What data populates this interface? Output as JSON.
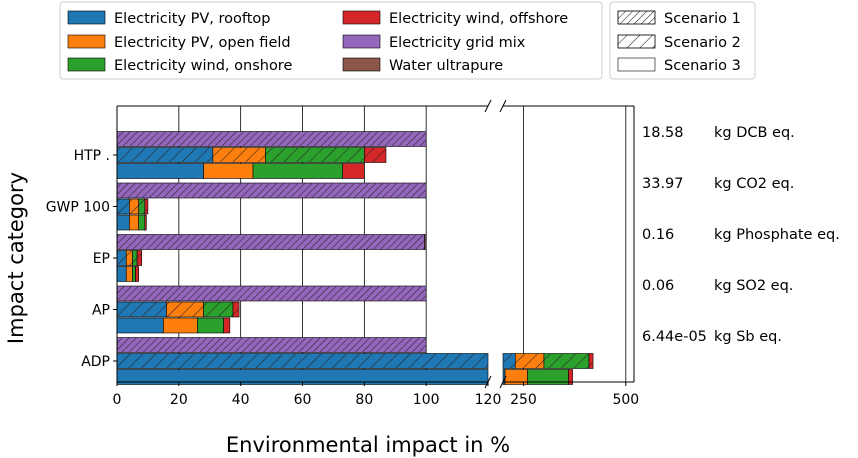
{
  "chart_data": {
    "type": "bar",
    "orientation": "horizontal",
    "stacked": true,
    "xlabel": "Environmental impact in %",
    "ylabel": "Impact category",
    "xlim_left": [
      0,
      120
    ],
    "xlim_right": [
      200,
      520
    ],
    "axis_break": true,
    "xticks_left": [
      "0",
      "20",
      "40",
      "60",
      "80",
      "100",
      "120"
    ],
    "xticks_right": [
      "250",
      "500"
    ],
    "grid": "vertical",
    "legend_placement": "top",
    "categories": [
      "HTP .",
      "GWP 100",
      "EP",
      "AP",
      "ADP"
    ],
    "units": [
      {
        "value": "18.58",
        "unit": "kg DCB eq."
      },
      {
        "value": "33.97",
        "unit": "kg CO2 eq."
      },
      {
        "value": "0.16",
        "unit": "kg Phosphate eq."
      },
      {
        "value": "0.06",
        "unit": "kg SO2 eq."
      },
      {
        "value": "6.44e-05",
        "unit": "kg Sb eq."
      }
    ],
    "series": [
      {
        "name": "Electricity PV, rooftop",
        "color": "#1f77b4"
      },
      {
        "name": "Electricity PV, open field",
        "color": "#ff7f0e"
      },
      {
        "name": "Electricity wind, onshore",
        "color": "#2ca02c"
      },
      {
        "name": "Electricity wind, offshore",
        "color": "#d62728"
      },
      {
        "name": "Electricity grid mix",
        "color": "#9467bd"
      },
      {
        "name": "Water ultrapure",
        "color": "#8c564b"
      }
    ],
    "scenarios": [
      {
        "name": "Scenario 1",
        "hatch": "dense"
      },
      {
        "name": "Scenario 2",
        "hatch": "sparse"
      },
      {
        "name": "Scenario 3",
        "hatch": "none"
      }
    ],
    "data": {
      "HTP .": {
        "Scenario 1": [
          0,
          0,
          0,
          0,
          100,
          0
        ],
        "Scenario 2": [
          31,
          17,
          32,
          7,
          0,
          0
        ],
        "Scenario 3": [
          28,
          16,
          29,
          7,
          0,
          0
        ]
      },
      "GWP 100": {
        "Scenario 1": [
          0,
          0,
          0,
          0,
          100,
          0
        ],
        "Scenario 2": [
          4,
          3,
          2,
          1,
          0,
          0
        ],
        "Scenario 3": [
          4,
          3,
          2,
          0.5,
          0,
          0
        ]
      },
      "EP": {
        "Scenario 1": [
          0,
          0,
          0,
          0,
          99.5,
          0.5
        ],
        "Scenario 2": [
          3,
          2,
          1.5,
          1.5,
          0,
          0
        ],
        "Scenario 3": [
          3,
          2,
          1,
          1,
          0,
          0
        ]
      },
      "AP": {
        "Scenario 1": [
          0,
          0,
          0,
          0,
          100,
          0
        ],
        "Scenario 2": [
          16,
          12,
          9.5,
          2,
          0,
          0
        ],
        "Scenario 3": [
          15,
          11,
          8.5,
          2,
          0,
          0
        ]
      },
      "ADP": {
        "Scenario 1": [
          0,
          0,
          0,
          0,
          100,
          0
        ],
        "Scenario 2": [
          230,
          70,
          110,
          10,
          0,
          0
        ],
        "Scenario 3": [
          205,
          55,
          100,
          10,
          0,
          0
        ]
      }
    }
  }
}
